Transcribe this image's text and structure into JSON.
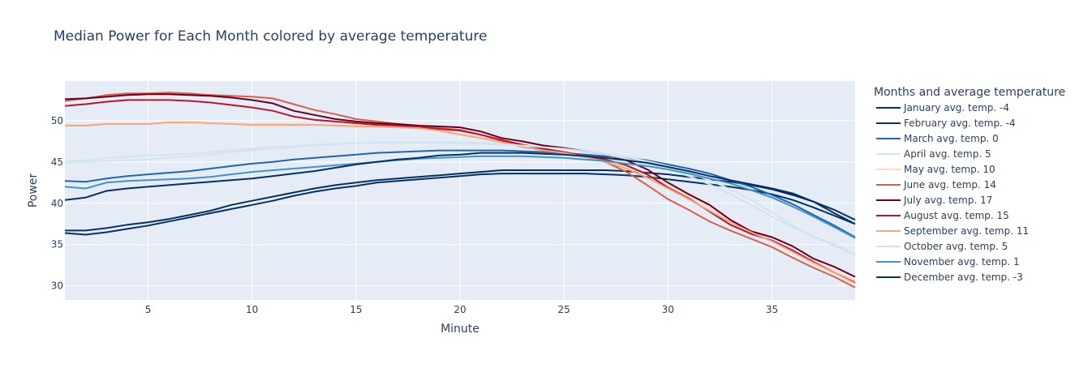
{
  "chart_data": {
    "type": "line",
    "title": "Median Power for Each Month colored by average temperature",
    "xlabel": "Minute",
    "ylabel": "Power",
    "legend_title": "Months and average temperature",
    "legend_position": "right",
    "grid": true,
    "xlim": [
      1,
      39
    ],
    "ylim": [
      28.3,
      54.8
    ],
    "xticks": [
      5,
      10,
      15,
      20,
      25,
      30,
      35
    ],
    "yticks": [
      30,
      35,
      40,
      45,
      50
    ],
    "x": [
      1,
      2,
      3,
      4,
      5,
      6,
      7,
      8,
      9,
      10,
      11,
      12,
      13,
      14,
      15,
      16,
      17,
      18,
      19,
      20,
      21,
      22,
      23,
      24,
      25,
      26,
      27,
      28,
      29,
      30,
      31,
      32,
      33,
      34,
      35,
      36,
      37,
      38,
      39
    ],
    "series": [
      {
        "name": "January avg. temp. -4",
        "color": "#053061",
        "values": [
          36.7,
          36.7,
          37.0,
          37.4,
          37.7,
          38.1,
          38.6,
          39.1,
          39.8,
          40.3,
          40.8,
          41.3,
          41.8,
          42.2,
          42.5,
          42.8,
          43.0,
          43.2,
          43.4,
          43.6,
          43.8,
          44.0,
          44.0,
          44.0,
          44.0,
          44.0,
          44.0,
          43.9,
          43.7,
          43.5,
          43.2,
          42.9,
          42.6,
          42.2,
          41.7,
          41.0,
          40.2,
          39.2,
          38.0
        ]
      },
      {
        "name": "February avg. temp. -4",
        "color": "#053061",
        "values": [
          36.4,
          36.2,
          36.5,
          36.9,
          37.3,
          37.8,
          38.3,
          38.8,
          39.3,
          39.8,
          40.3,
          40.9,
          41.4,
          41.8,
          42.1,
          42.5,
          42.7,
          42.9,
          43.1,
          43.3,
          43.5,
          43.6,
          43.6,
          43.6,
          43.6,
          43.6,
          43.5,
          43.4,
          43.2,
          42.9,
          42.6,
          42.3,
          42.0,
          41.6,
          41.1,
          40.4,
          39.5,
          38.5,
          37.5
        ]
      },
      {
        "name": "March avg. temp. 0",
        "color": "#2166ac",
        "values": [
          42.7,
          42.6,
          43.0,
          43.3,
          43.5,
          43.7,
          43.9,
          44.2,
          44.5,
          44.8,
          45.0,
          45.3,
          45.5,
          45.7,
          45.9,
          46.1,
          46.2,
          46.3,
          46.4,
          46.4,
          46.4,
          46.4,
          46.3,
          46.2,
          46.1,
          45.9,
          45.7,
          45.5,
          45.2,
          44.7,
          44.2,
          43.6,
          42.8,
          42.0,
          41.0,
          39.9,
          38.6,
          37.3,
          35.9
        ]
      },
      {
        "name": "April avg. temp. 5",
        "color": "#d1e5f0",
        "values": [
          45.1,
          45.2,
          45.5,
          45.6,
          45.8,
          45.9,
          46.0,
          46.2,
          46.4,
          46.6,
          46.8,
          46.9,
          47.1,
          47.2,
          47.3,
          47.4,
          47.4,
          47.4,
          47.4,
          47.4,
          47.3,
          47.2,
          47.0,
          46.8,
          46.6,
          46.3,
          46.0,
          45.6,
          45.1,
          44.5,
          43.7,
          42.8,
          41.7,
          40.4,
          38.9,
          37.3,
          35.9,
          34.9,
          33.7
        ]
      },
      {
        "name": "May avg. temp. 10",
        "color": "#fddbc7",
        "values": [
          49.5,
          49.5,
          49.6,
          49.6,
          49.6,
          49.7,
          49.7,
          49.7,
          49.6,
          49.6,
          49.6,
          49.6,
          49.5,
          49.5,
          49.5,
          49.4,
          49.3,
          49.1,
          48.8,
          48.4,
          48.0,
          47.5,
          47.0,
          46.6,
          46.2,
          45.7,
          45.2,
          44.4,
          43.4,
          42.2,
          40.9,
          39.5,
          37.9,
          36.6,
          35.4,
          34.2,
          33.0,
          31.8,
          30.6
        ]
      },
      {
        "name": "June avg. temp. 14",
        "color": "#d6604d",
        "values": [
          52.4,
          52.7,
          53.1,
          53.3,
          53.3,
          53.4,
          53.3,
          53.1,
          53.0,
          52.9,
          52.7,
          52.0,
          51.3,
          50.8,
          50.2,
          49.9,
          49.6,
          49.4,
          49.1,
          48.9,
          48.3,
          47.7,
          47.1,
          46.6,
          46.2,
          45.7,
          45.0,
          43.8,
          42.2,
          40.5,
          39.2,
          37.8,
          36.7,
          35.7,
          34.7,
          33.4,
          32.2,
          31.1,
          29.8
        ]
      },
      {
        "name": "July avg. temp. 17",
        "color": "#67001f",
        "values": [
          52.6,
          52.7,
          52.9,
          53.1,
          53.2,
          53.2,
          53.1,
          53.0,
          52.8,
          52.5,
          52.1,
          51.2,
          50.7,
          50.2,
          49.9,
          49.7,
          49.6,
          49.4,
          49.3,
          49.2,
          48.7,
          47.9,
          47.5,
          47.0,
          46.7,
          46.3,
          45.9,
          45.2,
          44.1,
          42.5,
          41.1,
          39.8,
          38.0,
          36.6,
          35.9,
          34.8,
          33.3,
          32.3,
          31.1
        ]
      },
      {
        "name": "August avg. temp. 15",
        "color": "#b2182b",
        "values": [
          51.8,
          52.0,
          52.3,
          52.5,
          52.5,
          52.5,
          52.4,
          52.2,
          51.9,
          51.6,
          51.2,
          50.5,
          50.1,
          49.9,
          49.7,
          49.5,
          49.4,
          49.2,
          49.0,
          48.8,
          48.3,
          47.6,
          47.1,
          46.6,
          46.2,
          45.7,
          45.3,
          44.6,
          43.5,
          41.9,
          40.6,
          39.0,
          37.4,
          36.3,
          35.5,
          34.3,
          32.9,
          31.6,
          30.4
        ]
      },
      {
        "name": "September avg. temp. 11",
        "color": "#f4a582",
        "values": [
          49.4,
          49.4,
          49.6,
          49.6,
          49.6,
          49.8,
          49.8,
          49.7,
          49.6,
          49.5,
          49.5,
          49.5,
          49.5,
          49.4,
          49.3,
          49.3,
          49.2,
          49.1,
          48.8,
          48.3,
          47.9,
          47.4,
          46.8,
          46.4,
          46.1,
          45.6,
          45.0,
          44.2,
          43.1,
          41.8,
          40.5,
          39.1,
          37.7,
          36.5,
          35.4,
          34.1,
          32.8,
          31.6,
          30.3
        ]
      },
      {
        "name": "October avg. temp. 5",
        "color": "#d1e5f0",
        "values": [
          44.9,
          45.0,
          45.1,
          45.2,
          45.3,
          45.5,
          45.7,
          45.9,
          46.2,
          46.4,
          46.6,
          46.8,
          47.0,
          47.1,
          47.3,
          47.3,
          47.3,
          47.3,
          47.3,
          47.2,
          47.2,
          47.1,
          47.0,
          46.8,
          46.6,
          46.3,
          45.9,
          45.4,
          44.8,
          44.1,
          43.3,
          42.3,
          41.1,
          39.8,
          38.4,
          37.1,
          36.0,
          35.0,
          33.9
        ]
      },
      {
        "name": "November avg. temp. 1",
        "color": "#4393c3",
        "values": [
          42.0,
          41.8,
          42.5,
          42.7,
          42.8,
          42.9,
          43.0,
          43.2,
          43.5,
          43.8,
          44.0,
          44.2,
          44.4,
          44.6,
          44.8,
          45.0,
          45.2,
          45.4,
          45.5,
          45.6,
          45.7,
          45.7,
          45.7,
          45.6,
          45.5,
          45.3,
          45.1,
          44.8,
          44.5,
          44.1,
          43.6,
          43.0,
          42.4,
          41.6,
          40.7,
          39.6,
          38.4,
          37.1,
          35.8
        ]
      },
      {
        "name": "December avg. temp. -3",
        "color": "#053061",
        "values": [
          40.4,
          40.7,
          41.5,
          41.8,
          42.0,
          42.2,
          42.4,
          42.6,
          42.8,
          43.0,
          43.3,
          43.6,
          43.9,
          44.3,
          44.7,
          45.0,
          45.3,
          45.5,
          45.8,
          45.9,
          46.1,
          46.1,
          46.1,
          46.0,
          45.9,
          45.7,
          45.5,
          45.2,
          44.9,
          44.4,
          43.9,
          43.3,
          42.8,
          42.3,
          41.8,
          41.2,
          40.2,
          38.8,
          37.5
        ]
      }
    ]
  }
}
